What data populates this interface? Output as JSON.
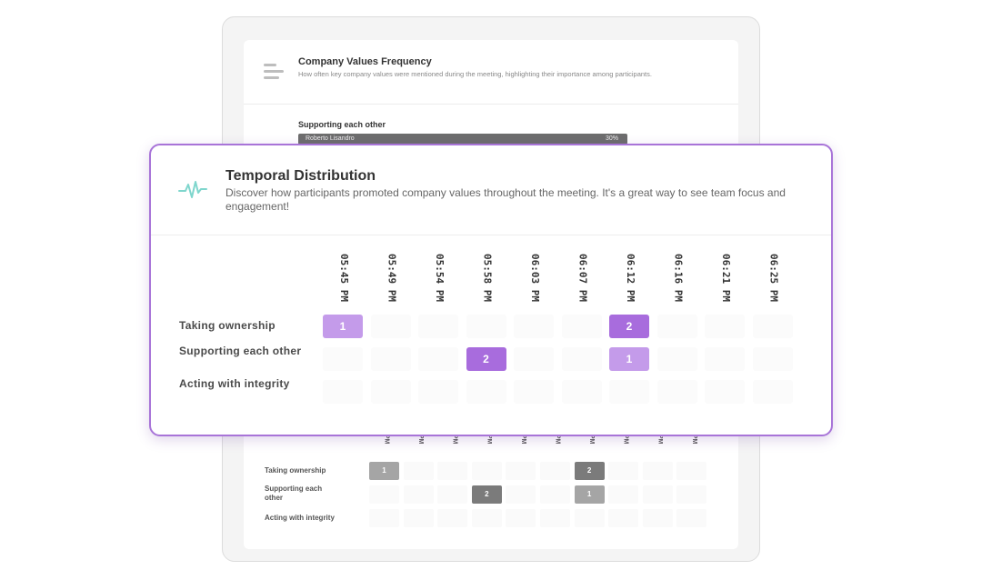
{
  "background_panel": {
    "title": "Company Values Frequency",
    "description": "How often key company values were mentioned during the meeting, highlighting their importance among participants.",
    "subtitle": "Supporting each other",
    "bar": {
      "name": "Roberto Lisandro",
      "percent": "30%"
    },
    "time_labels": [
      "5 PM",
      "0 PM",
      "4 PM",
      "8 PM",
      "3 PM",
      "7 PM",
      "2 PM",
      "6 PM",
      "1 PM",
      "5 PM"
    ],
    "rows": [
      "Taking ownership",
      "Supporting each other",
      "Acting with integrity"
    ]
  },
  "temporal_distribution": {
    "title": "Temporal Distribution",
    "description": "Discover how participants promoted company values throughout the meeting. It's a great way to see team focus and engagement!",
    "time_labels": [
      "05:45 PM",
      "05:49 PM",
      "05:54 PM",
      "05:58 PM",
      "06:03 PM",
      "06:07 PM",
      "06:12 PM",
      "06:16 PM",
      "06:21 PM",
      "06:25 PM"
    ],
    "rows": [
      {
        "label": "Taking ownership",
        "counts": [
          1,
          0,
          0,
          0,
          0,
          0,
          2,
          0,
          0,
          0
        ]
      },
      {
        "label": "Supporting each other",
        "counts": [
          0,
          0,
          0,
          2,
          0,
          0,
          1,
          0,
          0,
          0
        ]
      },
      {
        "label": "Acting with integrity",
        "counts": [
          0,
          0,
          0,
          0,
          0,
          0,
          0,
          0,
          0,
          0
        ]
      }
    ]
  },
  "colors": {
    "accent_border": "#a874d8",
    "count_1": "#c49bea",
    "count_2": "#a86cdd",
    "back_count_1": "#a5a5a5",
    "back_count_2": "#7b7b7b",
    "icon": "#7fd6cd"
  },
  "icons": {
    "values_frequency": "bar-lines-icon",
    "temporal_distribution": "pulse-icon"
  }
}
